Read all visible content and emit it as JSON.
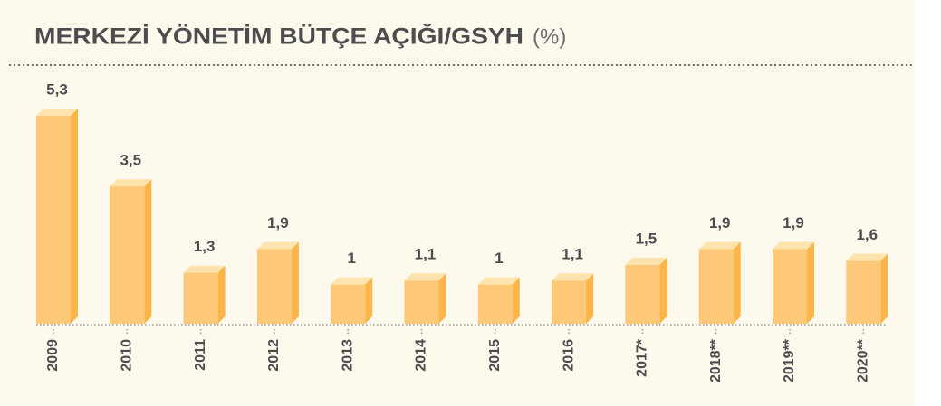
{
  "chart_data": {
    "type": "bar",
    "title": "MERKEZİ YÖNETİM BÜTÇE AÇIĞI/GSYH",
    "subtitle": "(%)",
    "categories": [
      "2009",
      "2010",
      "2011",
      "2012",
      "2013",
      "2014",
      "2015",
      "2016",
      "2017*",
      "2018**",
      "2019**",
      "2020**"
    ],
    "values": [
      5.3,
      3.5,
      1.3,
      1.9,
      1,
      1.1,
      1,
      1.1,
      1.5,
      1.9,
      1.9,
      1.6
    ],
    "value_labels": [
      "5,3",
      "3,5",
      "1,3",
      "1,9",
      "1",
      "1,1",
      "1",
      "1,1",
      "1,5",
      "1,9",
      "1,9",
      "1,6"
    ],
    "color": "#fdc877"
  }
}
